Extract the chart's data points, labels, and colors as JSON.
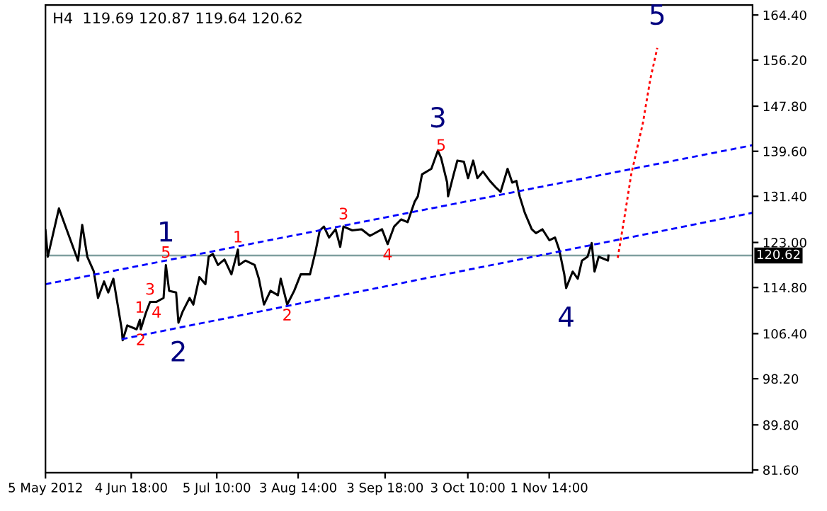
{
  "chart_data": {
    "type": "line",
    "title": "H4  119.69 120.87 119.64 120.62",
    "series": [
      {
        "color": "#000000",
        "line_style": "solid",
        "x": [
          "2012-05-05T00:00",
          "2012-05-05T20:00",
          "2012-05-09T20:00",
          "2012-05-11T20:00",
          "2012-05-16T16:00",
          "2012-05-18T04:00",
          "2012-05-20T00:00",
          "2012-05-22T08:00",
          "2012-05-23T20:00",
          "2012-05-26T00:00",
          "2012-05-27T12:00",
          "2012-05-29T08:00",
          "2012-06-01T08:00",
          "2012-06-01T16:00",
          "2012-06-03T08:00",
          "2012-06-06T16:00",
          "2012-06-07T20:00",
          "2012-06-08T04:00",
          "2012-06-10T00:00",
          "2012-06-11T12:00",
          "2012-06-13T20:00",
          "2012-06-16T08:00",
          "2012-06-17T04:00",
          "2012-06-18T08:00",
          "2012-06-20T20:00",
          "2012-06-21T16:00",
          "2012-06-23T04:00",
          "2012-06-25T16:00",
          "2012-06-27T00:00",
          "2012-06-29T04:00",
          "2012-07-01T08:00",
          "2012-07-02T12:00",
          "2012-07-04T00:00",
          "2012-07-05T20:00",
          "2012-07-08T04:00",
          "2012-07-10T16:00",
          "2012-07-13T00:00",
          "2012-07-13T08:00",
          "2012-07-15T16:00",
          "2012-07-19T00:00",
          "2012-07-20T12:00",
          "2012-07-22T08:00",
          "2012-07-24T16:00",
          "2012-07-27T08:00",
          "2012-07-28T08:00",
          "2012-07-30T16:00",
          "2012-08-02T04:00",
          "2012-08-04T12:00",
          "2012-08-07T20:00",
          "2012-08-09T20:00",
          "2012-08-11T08:00",
          "2012-08-12T20:00",
          "2012-08-14T16:00",
          "2012-08-17T00:00",
          "2012-08-18T16:00",
          "2012-08-19T20:00",
          "2012-08-23T00:00",
          "2012-08-26T08:00",
          "2012-08-29T08:00",
          "2012-09-02T16:00",
          "2012-09-04T16:00",
          "2012-09-07T00:00",
          "2012-09-09T12:00",
          "2012-09-11T20:00",
          "2012-09-14T08:00",
          "2012-09-15T12:00",
          "2012-09-17T00:00",
          "2012-09-20T08:00",
          "2012-09-22T16:00",
          "2012-09-23T20:00",
          "2012-09-26T00:00",
          "2012-09-26T08:00",
          "2012-09-28T08:00",
          "2012-09-29T16:00",
          "2012-10-02T00:00",
          "2012-10-03T12:00",
          "2012-10-05T08:00",
          "2012-10-06T20:00",
          "2012-10-08T20:00",
          "2012-10-11T08:00",
          "2012-10-13T16:00",
          "2012-10-15T04:00",
          "2012-10-17T16:00",
          "2012-10-19T08:00",
          "2012-10-20T20:00",
          "2012-10-22T00:00",
          "2012-10-23T20:00",
          "2012-10-26T08:00",
          "2012-10-27T20:00",
          "2012-10-30T04:00",
          "2012-11-01T16:00",
          "2012-11-03T16:00",
          "2012-11-05T04:00",
          "2012-11-07T00:00",
          "2012-11-07T16:00",
          "2012-11-10T00:00",
          "2012-11-11T20:00",
          "2012-11-13T08:00",
          "2012-11-15T08:00",
          "2012-11-16T20:00",
          "2012-11-17T20:00",
          "2012-11-19T08:00",
          "2012-11-22T16:00",
          "2012-11-22T20:00"
        ],
        "values": [
          125.2,
          120.4,
          129.2,
          126.4,
          119.7,
          126.2,
          120.4,
          117.7,
          112.9,
          115.9,
          113.9,
          116.4,
          107.2,
          105.2,
          107.9,
          107.2,
          108.9,
          107.2,
          110.2,
          112.2,
          112.2,
          112.9,
          118.9,
          114.2,
          113.9,
          108.4,
          110.4,
          112.9,
          111.7,
          116.7,
          115.4,
          120.4,
          120.9,
          118.9,
          119.9,
          117.2,
          121.7,
          118.9,
          119.7,
          118.9,
          116.4,
          111.7,
          114.2,
          113.4,
          116.4,
          111.7,
          114.2,
          117.2,
          117.2,
          121.4,
          125.2,
          125.9,
          123.9,
          125.4,
          122.2,
          125.9,
          125.2,
          125.4,
          124.2,
          125.4,
          122.7,
          125.9,
          127.2,
          126.7,
          130.4,
          131.4,
          135.4,
          136.4,
          139.7,
          138.4,
          133.9,
          131.4,
          135.4,
          137.9,
          137.7,
          134.7,
          137.9,
          134.7,
          135.9,
          134.2,
          132.9,
          132.2,
          136.4,
          133.9,
          134.2,
          131.4,
          128.4,
          125.4,
          124.7,
          125.4,
          123.4,
          123.9,
          121.7,
          117.2,
          114.7,
          117.7,
          116.4,
          119.7,
          120.4,
          122.9,
          117.7,
          120.4,
          119.7,
          120.6
        ]
      },
      {
        "color": "#0000ff",
        "line_style": "dashed",
        "x": [
          "2012-05-05T00:00",
          "2013-01-13T12:00"
        ],
        "values": [
          115.4,
          140.7
        ]
      },
      {
        "color": "#0000ff",
        "line_style": "dashed",
        "x": [
          "2012-06-01T08:00",
          "2013-01-13T12:00"
        ],
        "values": [
          105.4,
          128.4
        ]
      },
      {
        "color": "#ff0000",
        "line_style": "dotted",
        "x": [
          "2012-11-26T04:00",
          "2012-11-28T16:00",
          "2012-12-01T00:00",
          "2012-12-05T04:00",
          "2012-12-07T20:00",
          "2012-12-10T08:00"
        ],
        "values": [
          120.2,
          127.9,
          135.4,
          144.7,
          152.7,
          158.4
        ]
      }
    ],
    "xlim": [
      "2012-05-05T00:00",
      "2013-01-13T12:00"
    ],
    "xticks": [
      {
        "value": "2012-05-05T00:00",
        "label": "5 May 2012"
      },
      {
        "value": "2012-06-04T18:00",
        "label": "4 Jun 18:00"
      },
      {
        "value": "2012-07-05T10:00",
        "label": "5 Jul 10:00"
      },
      {
        "value": "2012-08-03T14:00",
        "label": "3 Aug 14:00"
      },
      {
        "value": "2012-09-03T18:00",
        "label": "3 Sep 18:00"
      },
      {
        "value": "2012-10-03T10:00",
        "label": "3 Oct 10:00"
      },
      {
        "value": "2012-11-01T14:00",
        "label": "1 Nov 14:00"
      }
    ],
    "ylim": [
      81.1,
      166.2
    ],
    "yticks": [
      {
        "value": 81.6,
        "label": "81.60"
      },
      {
        "value": 89.8,
        "label": "89.80"
      },
      {
        "value": 98.2,
        "label": "98.20"
      },
      {
        "value": 106.4,
        "label": "106.40"
      },
      {
        "value": 114.8,
        "label": "114.80"
      },
      {
        "value": 123.0,
        "label": "123.00"
      },
      {
        "value": 131.4,
        "label": "131.40"
      },
      {
        "value": 139.6,
        "label": "139.60"
      },
      {
        "value": 147.8,
        "label": "147.80"
      },
      {
        "value": 156.2,
        "label": "156.20"
      },
      {
        "value": 164.4,
        "label": "164.40"
      }
    ],
    "ref_lines": [
      {
        "axis": "y",
        "value": 120.62,
        "label": "120.62",
        "color": "#7f9f9f"
      }
    ],
    "annotations": [
      {
        "text": "1",
        "x": "2012-06-17T04:00",
        "y": 118.9
      },
      {
        "text": "2",
        "x": "2012-06-21T16:00",
        "y": 108.4
      },
      {
        "text": "3",
        "x": "2012-09-22T16:00",
        "y": 139.7
      },
      {
        "text": "4",
        "x": "2012-11-07T16:00",
        "y": 114.7
      },
      {
        "text": "5",
        "x": "2012-12-10T08:00",
        "y": 158.4
      },
      {
        "text": "1",
        "x": "2012-06-07T20:00",
        "y": 108.9
      },
      {
        "text": "2",
        "x": "2012-06-08T04:00",
        "y": 107.2
      },
      {
        "text": "3",
        "x": "2012-06-11T12:00",
        "y": 112.2
      },
      {
        "text": "4",
        "x": "2012-06-13T20:00",
        "y": 112.2
      },
      {
        "text": "5",
        "x": "2012-06-17T04:00",
        "y": 118.9
      },
      {
        "text": "1",
        "x": "2012-07-13T00:00",
        "y": 121.7
      },
      {
        "text": "2",
        "x": "2012-07-30T16:00",
        "y": 111.7
      },
      {
        "text": "3",
        "x": "2012-08-19T20:00",
        "y": 125.9
      },
      {
        "text": "4",
        "x": "2012-09-04T16:00",
        "y": 122.7
      },
      {
        "text": "5",
        "x": "2012-09-23T20:00",
        "y": 138.4
      }
    ],
    "grid": false,
    "legend": false,
    "marker": "none"
  }
}
